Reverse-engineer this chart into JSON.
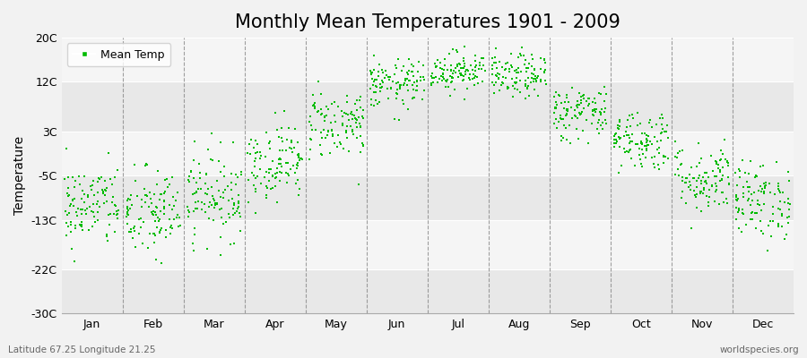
{
  "title": "Monthly Mean Temperatures 1901 - 2009",
  "ylabel": "Temperature",
  "xlabel_labels": [
    "Jan",
    "Feb",
    "Mar",
    "Apr",
    "May",
    "Jun",
    "Jul",
    "Aug",
    "Sep",
    "Oct",
    "Nov",
    "Dec"
  ],
  "ytick_labels": [
    "-30C",
    "-22C",
    "-13C",
    "-5C",
    "3C",
    "12C",
    "20C"
  ],
  "ytick_values": [
    -30,
    -22,
    -13,
    -5,
    3,
    12,
    20
  ],
  "ylim": [
    -30,
    20
  ],
  "dot_color": "#00bb00",
  "dot_size": 3.5,
  "legend_label": "Mean Temp",
  "footer_left": "Latitude 67.25 Longitude 21.25",
  "footer_right": "worldspecies.org",
  "bg_color": "#f2f2f2",
  "plot_bg_color": "#f2f2f2",
  "title_fontsize": 15,
  "axis_fontsize": 9,
  "monthly_means": [
    -10.5,
    -12.0,
    -8.5,
    -2.5,
    4.5,
    11.5,
    14.0,
    13.0,
    6.5,
    1.5,
    -5.5,
    -9.5
  ],
  "monthly_stds": [
    3.8,
    4.2,
    4.0,
    3.5,
    3.2,
    2.2,
    1.8,
    2.0,
    2.5,
    2.8,
    3.2,
    3.5
  ],
  "n_years": 109,
  "seed": 42,
  "band_colors": [
    "#e8e8e8",
    "#f5f5f5"
  ],
  "vline_color": "#888888",
  "hline_color": "#ffffff"
}
